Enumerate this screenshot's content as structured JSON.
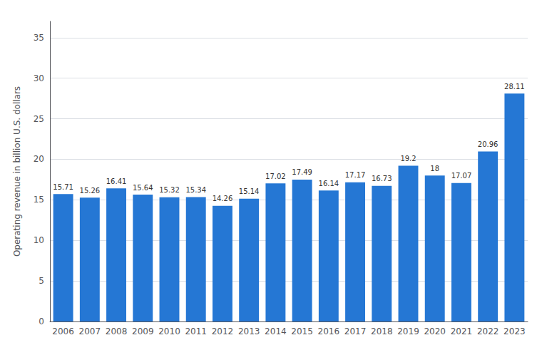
{
  "chart_data": {
    "type": "bar",
    "ylabel": "Operating revenue in billion U.S. dollars",
    "categories": [
      "2006",
      "2007",
      "2008",
      "2009",
      "2010",
      "2011",
      "2012",
      "2013",
      "2014",
      "2015",
      "2016",
      "2017",
      "2018",
      "2019",
      "2020",
      "2021",
      "2022",
      "2023"
    ],
    "values": [
      15.71,
      15.26,
      16.41,
      15.64,
      15.32,
      15.34,
      14.26,
      15.14,
      17.02,
      17.49,
      16.14,
      17.17,
      16.73,
      19.2,
      18.0,
      17.07,
      20.96,
      28.11
    ],
    "color": "#2577d4",
    "ylim": [
      0,
      37
    ],
    "yticks": [
      0,
      5,
      10,
      15,
      20,
      25,
      30,
      35
    ],
    "grid": true,
    "data_labels": true
  }
}
